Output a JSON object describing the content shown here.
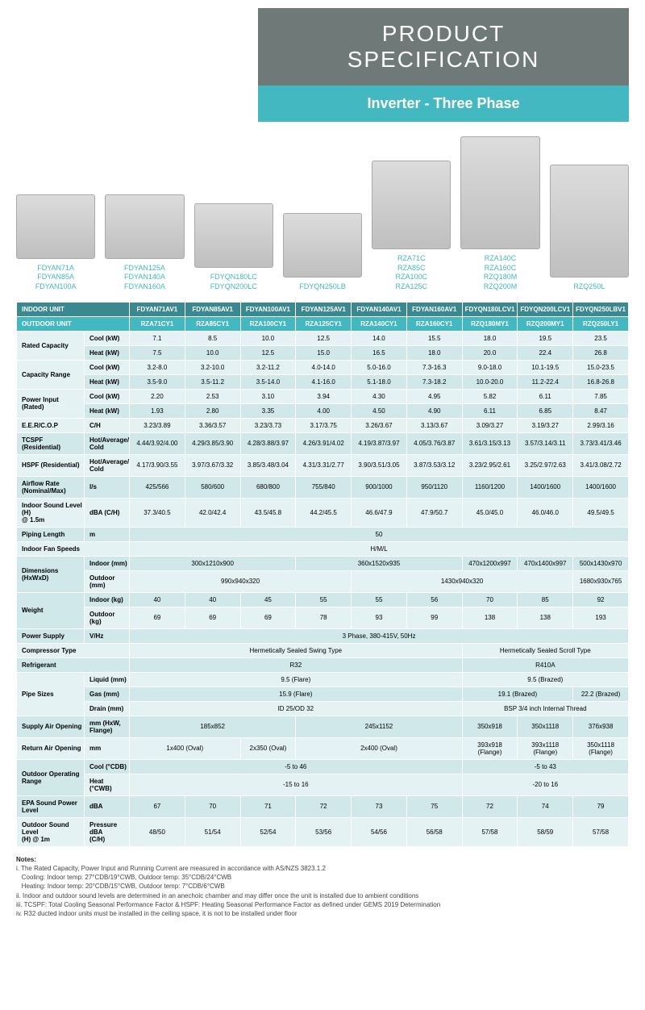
{
  "header": {
    "title": "PRODUCT\nSPECIFICATION",
    "subtitle": "Inverter - Three Phase"
  },
  "products": [
    {
      "labels": "FDYAN71A\nFDYAN85A\nFDYAN100A",
      "size": "sm"
    },
    {
      "labels": "FDYAN125A\nFDYAN140A\nFDYAN160A",
      "size": "sm"
    },
    {
      "labels": "FDYQN180LC\nFDYQN200LC",
      "size": "sm"
    },
    {
      "labels": "FDYQN250LB",
      "size": "sm"
    },
    {
      "labels": "RZA71C\nRZA85C\nRZA100C\nRZA125C",
      "size": "lg"
    },
    {
      "labels": "RZA140C\nRZA160C\nRZQ180M\nRZQ200M",
      "size": "xl"
    },
    {
      "labels": "RZQ250L",
      "size": "xl"
    }
  ],
  "colheaders": {
    "row1": [
      "INDOOR UNIT",
      "FDYAN71AV1",
      "FDYAN85AV1",
      "FDYAN100AV1",
      "FDYAN125AV1",
      "FDYAN140AV1",
      "FDYAN160AV1",
      "FDYQN180LCV1",
      "FDYQN200LCV1",
      "FDYQN250LBV1"
    ],
    "row2": [
      "OUTDOOR UNIT",
      "RZA71CY1",
      "RZA85CY1",
      "RZA100CY1",
      "RZA125CY1",
      "RZA140CY1",
      "RZA160CY1",
      "RZQ180MY1",
      "RZQ200MY1",
      "RZQ250LY1"
    ]
  },
  "rows": [
    {
      "main": "Rated Capacity",
      "sub": "Cool (kW)",
      "cells": [
        "7.1",
        "8.5",
        "10.0",
        "12.5",
        "14.0",
        "15.5",
        "18.0",
        "19.5",
        "23.5"
      ],
      "rs": 2,
      "cls": "alt"
    },
    {
      "sub": "Heat (kW)",
      "cells": [
        "7.5",
        "10.0",
        "12.5",
        "15.0",
        "16.5",
        "18.0",
        "20.0",
        "22.4",
        "26.8"
      ],
      "cls": "norm"
    },
    {
      "main": "Capacity Range",
      "sub": "Cool (kW)",
      "cells": [
        "3.2-8.0",
        "3.2-10.0",
        "3.2-11.2",
        "4.0-14.0",
        "5.0-16.0",
        "7.3-16.3",
        "9.0-18.0",
        "10.1-19.5",
        "15.0-23.5"
      ],
      "rs": 2,
      "cls": "alt"
    },
    {
      "sub": "Heat (kW)",
      "cells": [
        "3.5-9.0",
        "3.5-11.2",
        "3.5-14.0",
        "4.1-16.0",
        "5.1-18.0",
        "7.3-18.2",
        "10.0-20.0",
        "11.2-22.4",
        "16.8-26.8"
      ],
      "cls": "norm"
    },
    {
      "main": "Power Input (Rated)",
      "sub": "Cool (kW)",
      "cells": [
        "2.20",
        "2.53",
        "3.10",
        "3.94",
        "4.30",
        "4.95",
        "5.82",
        "6.11",
        "7.85"
      ],
      "rs": 2,
      "cls": "alt"
    },
    {
      "sub": "Heat (kW)",
      "cells": [
        "1.93",
        "2.80",
        "3.35",
        "4.00",
        "4.50",
        "4.90",
        "6.11",
        "6.85",
        "8.47"
      ],
      "cls": "norm"
    },
    {
      "main": "E.E.R/C.O.P",
      "sub": "C/H",
      "cells": [
        "3.23/3.89",
        "3.36/3.57",
        "3.23/3.73",
        "3.17/3.75",
        "3.26/3.67",
        "3.13/3.67",
        "3.09/3.27",
        "3.19/3.27",
        "2.99/3.16"
      ],
      "rs": 1,
      "cls": "alt"
    },
    {
      "main": "TCSPF (Residential)",
      "sub": "Hot/Average/\nCold",
      "cells": [
        "4.44/3.92/4.00",
        "4.29/3.85/3.90",
        "4.28/3.88/3.97",
        "4.26/3.91/4.02",
        "4.19/3.87/3.97",
        "4.05/3.76/3.87",
        "3.61/3.15/3.13",
        "3.57/3.14/3.11",
        "3.73/3.41/3.46"
      ],
      "rs": 1,
      "cls": "norm"
    },
    {
      "main": "HSPF (Residential)",
      "sub": "Hot/Average/\nCold",
      "cells": [
        "4.17/3.90/3.55",
        "3.97/3.67/3.32",
        "3.85/3.48/3.04",
        "4.31/3.31/2.77",
        "3.90/3.51/3.05",
        "3.87/3.53/3.12",
        "3.23/2.95/2.61",
        "3.25/2.97/2.63",
        "3.41/3.08/2.72"
      ],
      "rs": 1,
      "cls": "alt"
    },
    {
      "main": "Airflow Rate\n(Nominal/Max)",
      "sub": "l/s",
      "cells": [
        "425/566",
        "580/600",
        "680/800",
        "755/840",
        "900/1000",
        "950/1120",
        "1160/1200",
        "1400/1600",
        "1400/1600"
      ],
      "rs": 1,
      "cls": "norm"
    },
    {
      "main": "Indoor Sound Level (H)\n@ 1.5m",
      "sub": "dBA (C/H)",
      "cells": [
        "37.3/40.5",
        "42.0/42.4",
        "43.5/45.8",
        "44.2/45.5",
        "46.6/47.9",
        "47.9/50.7",
        "45.0/45.0",
        "46.0/46.0",
        "49.5/49.5"
      ],
      "rs": 1,
      "cls": "alt"
    },
    {
      "main": "Piping Length",
      "sub": "m",
      "span": [
        {
          "txt": "50",
          "cs": 9
        }
      ],
      "rs": 1,
      "cls": "norm"
    },
    {
      "main": "Indoor Fan Speeds",
      "sub": "",
      "span": [
        {
          "txt": "H/M/L",
          "cs": 9
        }
      ],
      "nosub": true,
      "rs": 1,
      "cls": "alt"
    },
    {
      "main": "Dimensions (HxWxD)",
      "sub": "Indoor (mm)",
      "span": [
        {
          "txt": "300x1210x900",
          "cs": 3
        },
        {
          "txt": "360x1520x935",
          "cs": 3
        },
        {
          "txt": "470x1200x997",
          "cs": 1
        },
        {
          "txt": "470x1400x997",
          "cs": 1
        },
        {
          "txt": "500x1430x970",
          "cs": 1
        }
      ],
      "rs": 2,
      "cls": "norm"
    },
    {
      "sub": "Outdoor (mm)",
      "span": [
        {
          "txt": "990x940x320",
          "cs": 4
        },
        {
          "txt": "1430x940x320",
          "cs": 4
        },
        {
          "txt": "1680x930x765",
          "cs": 1
        }
      ],
      "cls": "alt"
    },
    {
      "main": "Weight",
      "sub": "Indoor (kg)",
      "cells": [
        "40",
        "40",
        "45",
        "55",
        "55",
        "56",
        "70",
        "85",
        "92"
      ],
      "rs": 2,
      "cls": "norm"
    },
    {
      "sub": "Outdoor (kg)",
      "cells": [
        "69",
        "69",
        "69",
        "78",
        "93",
        "99",
        "138",
        "138",
        "193"
      ],
      "cls": "alt"
    },
    {
      "main": "Power Supply",
      "sub": "V/Hz",
      "span": [
        {
          "txt": "3 Phase, 380-415V, 50Hz",
          "cs": 9
        }
      ],
      "rs": 1,
      "cls": "norm"
    },
    {
      "main": "Compressor Type",
      "sub": "",
      "span": [
        {
          "txt": "Hermetically Sealed Swing Type",
          "cs": 6
        },
        {
          "txt": "Hermetically Sealed Scroll Type",
          "cs": 3
        }
      ],
      "nosub": true,
      "rs": 1,
      "cls": "alt"
    },
    {
      "main": "Refrigerant",
      "sub": "",
      "span": [
        {
          "txt": "R32",
          "cs": 6
        },
        {
          "txt": "R410A",
          "cs": 3
        }
      ],
      "nosub": true,
      "rs": 1,
      "cls": "norm"
    },
    {
      "main": "Pipe Sizes",
      "sub": "Liquid (mm)",
      "span": [
        {
          "txt": "9.5 (Flare)",
          "cs": 6
        },
        {
          "txt": "9.5 (Brazed)",
          "cs": 3
        }
      ],
      "rs": 3,
      "cls": "alt"
    },
    {
      "sub": "Gas (mm)",
      "span": [
        {
          "txt": "15.9 (Flare)",
          "cs": 6
        },
        {
          "txt": "19.1 (Brazed)",
          "cs": 2
        },
        {
          "txt": "22.2 (Brazed)",
          "cs": 1
        }
      ],
      "cls": "norm"
    },
    {
      "sub": "Drain (mm)",
      "span": [
        {
          "txt": "ID 25/OD 32",
          "cs": 6
        },
        {
          "txt": "BSP 3/4 inch Internal Thread",
          "cs": 3
        }
      ],
      "cls": "alt"
    },
    {
      "main": "Supply Air Opening",
      "sub": "mm (HxW,\nFlange)",
      "span": [
        {
          "txt": "185x852",
          "cs": 3
        },
        {
          "txt": "245x1152",
          "cs": 3
        },
        {
          "txt": "350x918",
          "cs": 1
        },
        {
          "txt": "350x1118",
          "cs": 1
        },
        {
          "txt": "376x938",
          "cs": 1
        }
      ],
      "rs": 1,
      "cls": "norm"
    },
    {
      "main": "Return Air Opening",
      "sub": "mm",
      "span": [
        {
          "txt": "1x400 (Oval)",
          "cs": 2
        },
        {
          "txt": "2x350 (Oval)",
          "cs": 1
        },
        {
          "txt": "2x400 (Oval)",
          "cs": 3
        },
        {
          "txt": "393x918\n(Flange)",
          "cs": 1
        },
        {
          "txt": "393x1118\n(Flange)",
          "cs": 1
        },
        {
          "txt": "350x1118\n(Flange)",
          "cs": 1
        }
      ],
      "rs": 1,
      "cls": "alt"
    },
    {
      "main": "Outdoor Operating\nRange",
      "sub": "Cool (°CDB)",
      "span": [
        {
          "txt": "-5 to 46",
          "cs": 6
        },
        {
          "txt": "-5 to 43",
          "cs": 3
        }
      ],
      "rs": 2,
      "cls": "norm"
    },
    {
      "sub": "Heat (°CWB)",
      "span": [
        {
          "txt": "-15 to 16",
          "cs": 6
        },
        {
          "txt": "-20 to 16",
          "cs": 3
        }
      ],
      "cls": "alt"
    },
    {
      "main": "EPA Sound Power\nLevel",
      "sub": "dBA",
      "cells": [
        "67",
        "70",
        "71",
        "72",
        "73",
        "75",
        "72",
        "74",
        "79"
      ],
      "rs": 1,
      "cls": "norm"
    },
    {
      "main": "Outdoor Sound Level\n(H) @ 1m",
      "sub": "Pressure dBA\n(C/H)",
      "cells": [
        "48/50",
        "51/54",
        "52/54",
        "53/56",
        "54/56",
        "56/58",
        "57/58",
        "58/59",
        "57/58"
      ],
      "rs": 1,
      "cls": "alt"
    }
  ],
  "notes": {
    "title": "Notes:",
    "items": [
      "i. The Rated Capacity, Power Input and Running Current are measured in accordance with AS/NZS 3823.1.2",
      "   Cooling: Indoor temp: 27°CDB/19°CWB, Outdoor temp: 35°CDB/24°CWB",
      "   Heating: Indoor temp: 20°CDB/15°CWB, Outdoor temp: 7°CDB/6°CWB",
      "ii. Indoor and outdoor sound levels are determined in an anechoic chamber and may differ once the unit is installed due to ambient conditions",
      "iii. TCSPF: Total Cooling Seasonal Performance Factor & HSPF: Heating Seasonal Performance Factor as defined under GEMS 2019 Determination",
      "iv. R32 ducted indoor units must be installed in the ceiling space, it is not to be installed under floor"
    ]
  }
}
